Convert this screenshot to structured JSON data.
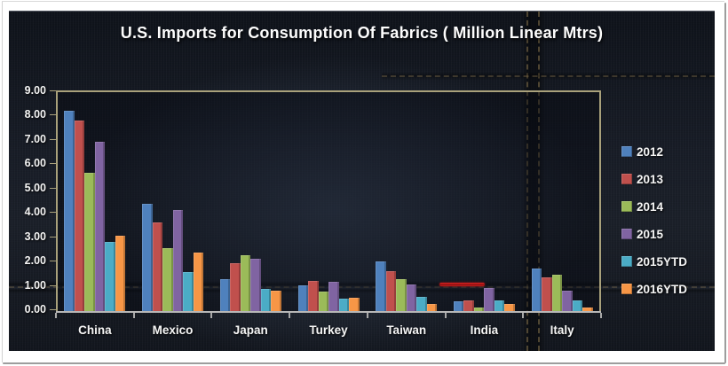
{
  "chart_data": {
    "type": "bar",
    "title": "U.S. Imports for Consumption Of Fabrics ( Million Linear Mtrs)",
    "unit": "Million Linear Mtrs",
    "categories": [
      "China",
      "Mexico",
      "Japan",
      "Turkey",
      "Taiwan",
      "India",
      "Italy"
    ],
    "series": [
      {
        "name": "2012",
        "color": "#4F81BD",
        "values": [
          8.25,
          4.4,
          1.3,
          1.05,
          2.05,
          0.4,
          1.75
        ]
      },
      {
        "name": "2013",
        "color": "#C0504D",
        "values": [
          7.85,
          3.65,
          1.95,
          1.25,
          1.65,
          0.45,
          1.4
        ]
      },
      {
        "name": "2014",
        "color": "#9BBB59",
        "values": [
          5.7,
          2.6,
          2.3,
          0.8,
          1.3,
          0.15,
          1.5
        ]
      },
      {
        "name": "2015",
        "color": "#8064A2",
        "values": [
          6.95,
          4.15,
          2.15,
          1.2,
          1.1,
          0.95,
          0.85
        ]
      },
      {
        "name": "2015YTD",
        "color": "#4BACC6",
        "values": [
          2.85,
          1.6,
          0.9,
          0.5,
          0.6,
          0.45,
          0.45
        ]
      },
      {
        "name": "2016YTD",
        "color": "#F79646",
        "values": [
          3.1,
          2.4,
          0.85,
          0.55,
          0.3,
          0.3,
          0.15
        ]
      }
    ],
    "ylim": [
      0,
      9
    ],
    "ytick_step": 1,
    "ytick_labels": [
      "9.00",
      "8.00",
      "7.00",
      "6.00",
      "5.00",
      "4.00",
      "3.00",
      "2.00",
      "1.00",
      "0.00"
    ],
    "grid": false,
    "legend_position": "right",
    "annotation": {
      "type": "red-marker-underline",
      "over_category": "India",
      "at_value": 1.1,
      "color": "#c41d1d"
    }
  }
}
